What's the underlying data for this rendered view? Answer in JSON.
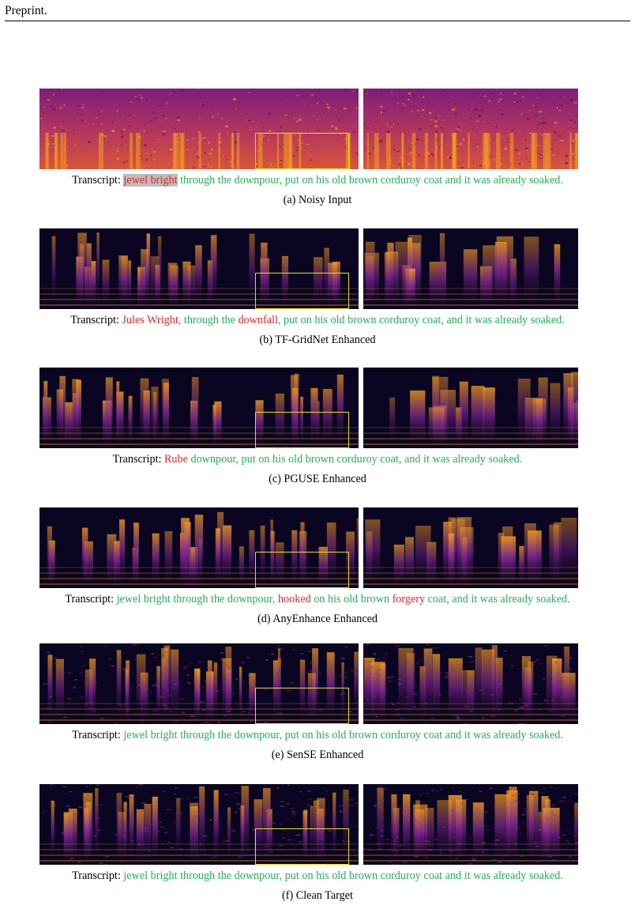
{
  "header": {
    "text": "Preprint."
  },
  "colors": {
    "correct": "#22b155",
    "error": "#ee2222",
    "highlight_bg": "#bdbdbd",
    "zoom_box": "#e8e010",
    "spec_dark": "#0a0520",
    "spec_mid": "#8a2a9a",
    "spec_bright": "#f7a21b"
  },
  "panels": [
    {
      "id": "a",
      "style": "noisy",
      "transcript": [
        {
          "text": "Transcript: ",
          "kind": "label"
        },
        {
          "text": "jewel bright",
          "kind": "highlight"
        },
        {
          "text": " through the downpour, put on his old brown corduroy coat and it was already soaked.",
          "kind": "ok"
        }
      ],
      "caption": "(a) Noisy Input"
    },
    {
      "id": "b",
      "style": "sparse",
      "transcript": [
        {
          "text": "Transcript: ",
          "kind": "label"
        },
        {
          "text": "Jules Wright",
          "kind": "err"
        },
        {
          "text": ", through the ",
          "kind": "ok"
        },
        {
          "text": "downfall",
          "kind": "err"
        },
        {
          "text": ", put on his old brown corduroy coat, and it was already  soaked.",
          "kind": "ok"
        }
      ],
      "caption": "(b) TF-GridNet Enhanced"
    },
    {
      "id": "c",
      "style": "sparse",
      "transcript": [
        {
          "text": "Transcript: ",
          "kind": "label"
        },
        {
          "text": "Rube",
          "kind": "err"
        },
        {
          "text": " downpour, put on his old brown corduroy coat, and it was already soaked.",
          "kind": "ok"
        }
      ],
      "caption": "(c) PGUSE Enhanced"
    },
    {
      "id": "d",
      "style": "sparse",
      "transcript": [
        {
          "text": "Transcript: ",
          "kind": "label"
        },
        {
          "text": "jewel bright through the downpour, ",
          "kind": "ok"
        },
        {
          "text": "hooked",
          "kind": "err"
        },
        {
          "text": " on his old brown ",
          "kind": "ok"
        },
        {
          "text": "forgery",
          "kind": "err"
        },
        {
          "text": " coat, and it was  already soaked.",
          "kind": "ok"
        }
      ],
      "caption": "(d) AnyEnhance Enhanced"
    },
    {
      "id": "e",
      "style": "rich",
      "transcript": [
        {
          "text": "Transcript: ",
          "kind": "label"
        },
        {
          "text": "jewel bright through the downpour, put on his old brown corduroy coat and it was already soaked.",
          "kind": "ok"
        }
      ],
      "caption": "(e) SenSE Enhanced"
    },
    {
      "id": "f",
      "style": "rich",
      "transcript": [
        {
          "text": "Transcript: ",
          "kind": "label"
        },
        {
          "text": "jewel bright through the downpour, put on his old brown corduroy coat and it was already soaked.",
          "kind": "ok"
        }
      ],
      "caption": "(f) Clean Target"
    }
  ]
}
